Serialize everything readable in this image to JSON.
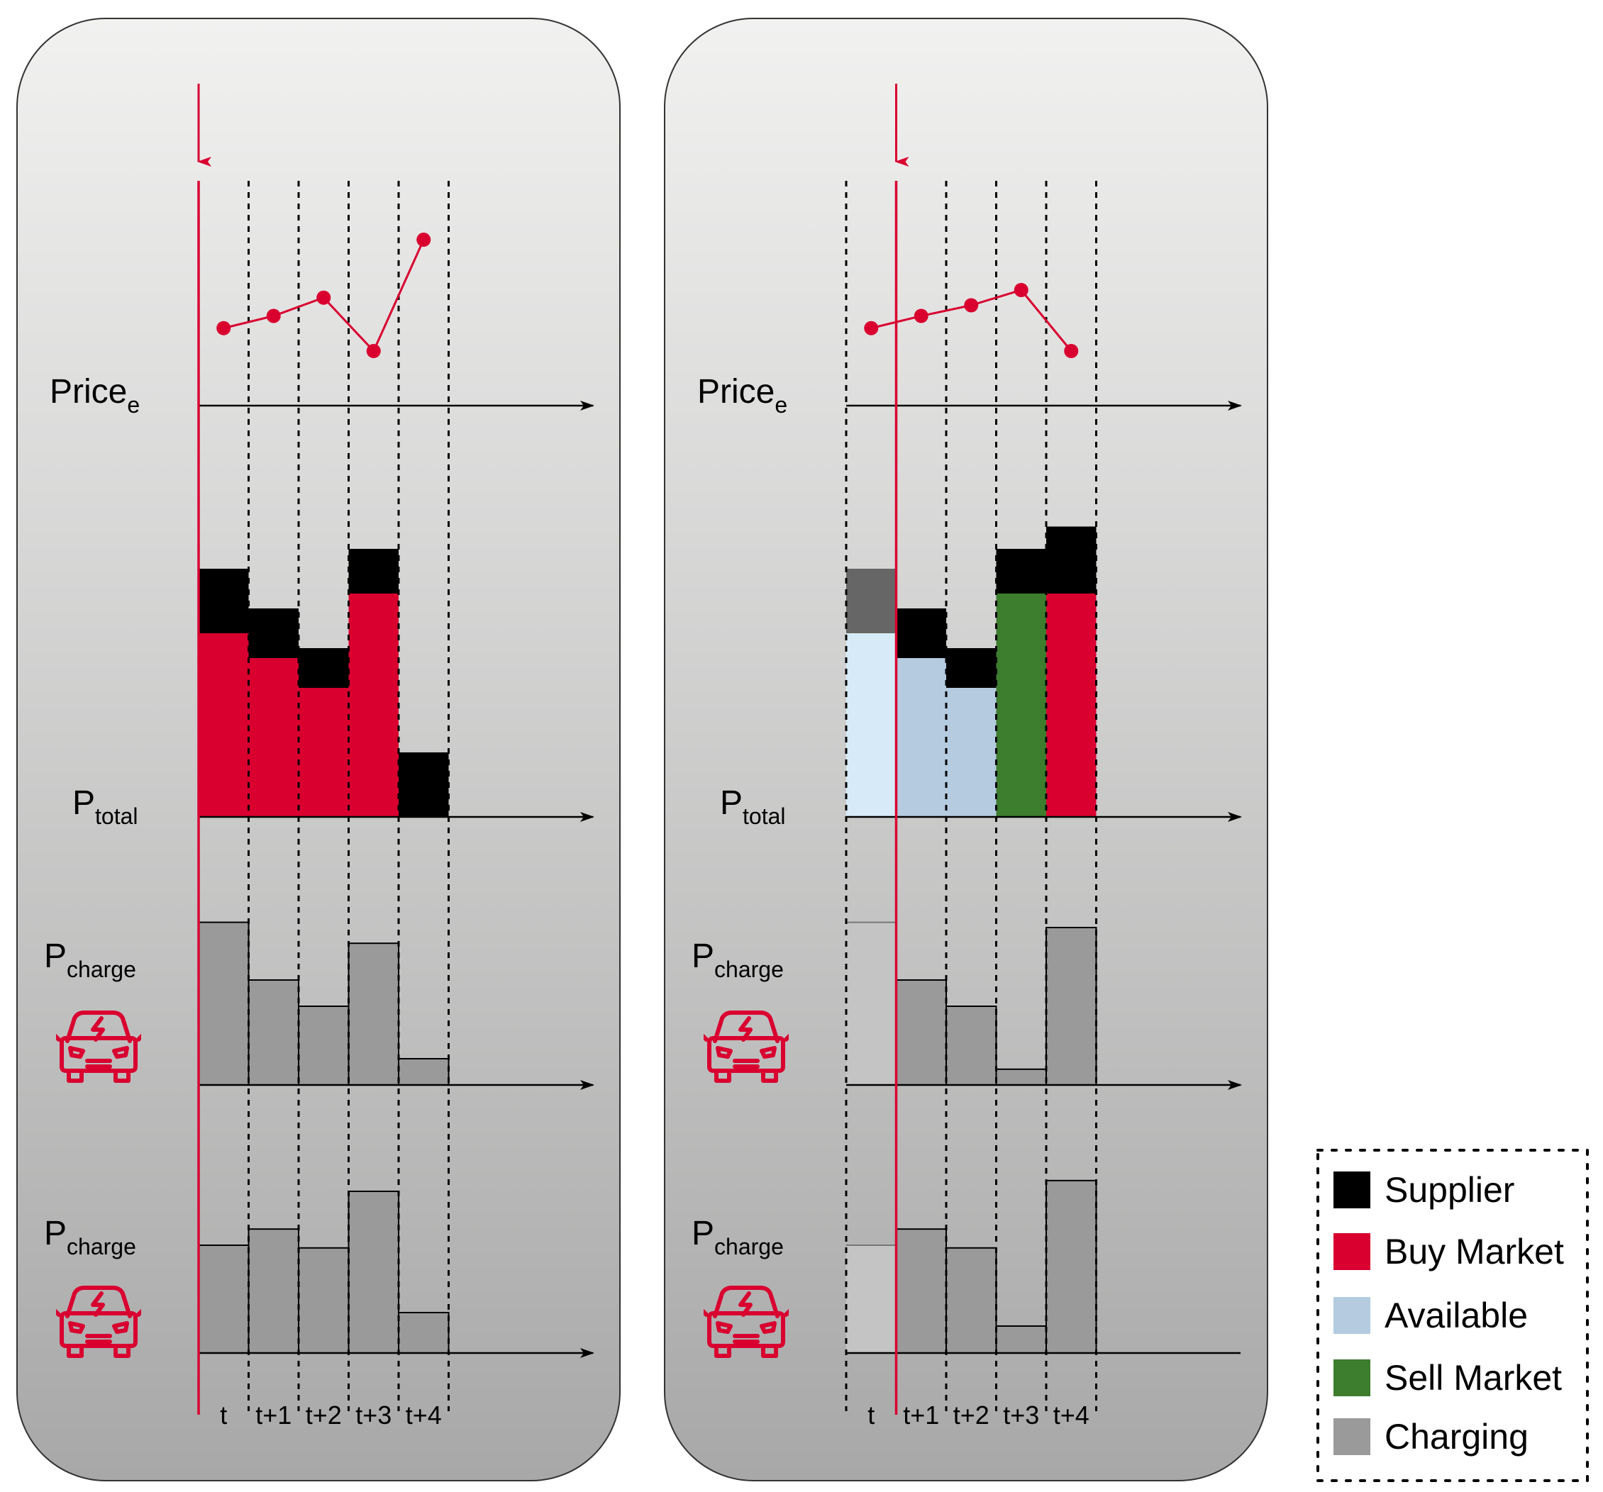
{
  "colors": {
    "supplier": "#000000",
    "buy_market": "#d90030",
    "available": "#b4cbe0",
    "available_light": "#d6ebf7",
    "sell_market": "#3c7d2e",
    "charging": "#9a9a9a",
    "charging_dark": "#666666",
    "charging_faded": "#c4c4c4",
    "accent": "#d90030"
  },
  "labels": {
    "price": "Price",
    "price_sub": "e",
    "ptotal": "P",
    "ptotal_sub": "total",
    "pcharge": "P",
    "pcharge_sub": "charge"
  },
  "ticks": [
    "t",
    "t+1",
    "t+2",
    "t+3",
    "t+4"
  ],
  "legend": [
    {
      "label": "Supplier",
      "color_key": "supplier"
    },
    {
      "label": "Buy Market",
      "color_key": "buy_market"
    },
    {
      "label": "Available",
      "color_key": "available"
    },
    {
      "label": "Sell Market",
      "color_key": "sell_market"
    },
    {
      "label": "Charging",
      "color_key": "charging"
    }
  ],
  "chart_data": [
    {
      "type": "bar",
      "panel": "left",
      "current_step": 0,
      "categories": [
        "t",
        "t+1",
        "t+2",
        "t+3",
        "t+4"
      ],
      "price": [
        1.5,
        2.3,
        3.5,
        0.0,
        7.3
      ],
      "ptotal": {
        "stack": [
          {
            "name": "Buy Market",
            "color_key": "buy_market",
            "values": [
              3.7,
              3.2,
              2.6,
              4.5,
              0.0
            ]
          },
          {
            "name": "Supplier",
            "color_key": "supplier",
            "values": [
              1.3,
              1.0,
              0.8,
              0.9,
              1.3
            ]
          }
        ]
      },
      "pcharge_ev1": {
        "name": "Charging",
        "color_key": "charging",
        "values": [
          3.1,
          2.0,
          1.5,
          2.7,
          0.5
        ]
      },
      "pcharge_ev2": {
        "name": "Charging",
        "color_key": "charging",
        "values": [
          2.0,
          2.3,
          1.95,
          3.0,
          0.75
        ]
      }
    },
    {
      "type": "bar",
      "panel": "right",
      "current_step": 1,
      "categories": [
        "t",
        "t+1",
        "t+2",
        "t+3",
        "t+4"
      ],
      "price": [
        1.5,
        2.3,
        3.0,
        4.0,
        0.0
      ],
      "ptotal": {
        "bars": [
          {
            "lower": {
              "name": "Available (past)",
              "color_key": "available_light",
              "value": 3.7
            },
            "upper": {
              "name": "Supplier (past)",
              "color_key": "charging_dark",
              "value": 1.3
            }
          },
          {
            "lower": {
              "name": "Available",
              "color_key": "available",
              "value": 3.2
            },
            "upper": {
              "name": "Supplier",
              "color_key": "supplier",
              "value": 1.0
            }
          },
          {
            "lower": {
              "name": "Available",
              "color_key": "available",
              "value": 2.6
            },
            "upper": {
              "name": "Supplier",
              "color_key": "supplier",
              "value": 0.8
            }
          },
          {
            "lower": {
              "name": "Sell Market",
              "color_key": "sell_market",
              "value": 4.5
            },
            "upper": {
              "name": "Supplier",
              "color_key": "supplier",
              "value": 0.9
            }
          },
          {
            "lower": {
              "name": "Buy Market",
              "color_key": "buy_market",
              "value": 4.5
            },
            "upper": {
              "name": "Supplier",
              "color_key": "supplier",
              "value": 1.35
            }
          }
        ]
      },
      "pcharge_ev1": {
        "name": "Charging",
        "color_key": "charging",
        "values": [
          3.1,
          2.0,
          1.5,
          0.3,
          3.0
        ]
      },
      "pcharge_ev2": {
        "name": "Charging",
        "color_key": "charging",
        "values": [
          2.0,
          2.3,
          1.95,
          0.5,
          3.2
        ]
      }
    }
  ]
}
